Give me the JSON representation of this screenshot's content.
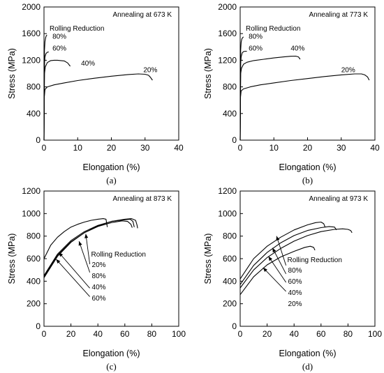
{
  "chart_data": [
    {
      "id": "a",
      "type": "line",
      "caption": "(a)",
      "annotation": "Annealing at 673 K",
      "legend_title": "Rolling Reduction",
      "xlabel": "Elongation (%)",
      "ylabel": "Stress (MPa)",
      "xlim": [
        0,
        40
      ],
      "ylim": [
        0,
        2000
      ],
      "xticks": [
        0,
        10,
        20,
        30,
        40
      ],
      "yticks": [
        0,
        400,
        800,
        1200,
        1600,
        2000
      ],
      "series": [
        {
          "name": "80%",
          "x": [
            0,
            0.15,
            0.3,
            0.5,
            0.7,
            0.9
          ],
          "y": [
            0,
            1350,
            1480,
            1540,
            1570,
            1580
          ]
        },
        {
          "name": "60%",
          "x": [
            0,
            0.15,
            0.3,
            0.6,
            1.0,
            1.4
          ],
          "y": [
            0,
            1150,
            1250,
            1300,
            1320,
            1325
          ]
        },
        {
          "name": "40%",
          "x": [
            0,
            0.15,
            0.4,
            1,
            2,
            3,
            4,
            5,
            6,
            7,
            7.8
          ],
          "y": [
            0,
            1000,
            1100,
            1165,
            1195,
            1200,
            1200,
            1195,
            1190,
            1160,
            1110
          ]
        },
        {
          "name": "20%",
          "x": [
            0,
            0.1,
            0.3,
            1,
            3,
            6,
            10,
            15,
            20,
            25,
            28,
            30,
            31,
            31.5,
            32.2
          ],
          "y": [
            0,
            650,
            760,
            800,
            830,
            860,
            895,
            930,
            960,
            985,
            995,
            990,
            975,
            950,
            900
          ]
        }
      ],
      "labels": [
        {
          "text": "80%",
          "x": 2.5,
          "y": 1525
        },
        {
          "text": "60%",
          "x": 2.5,
          "y": 1345
        },
        {
          "text": "40%",
          "x": 11,
          "y": 1120
        },
        {
          "text": "20%",
          "x": 29.5,
          "y": 1020
        }
      ]
    },
    {
      "id": "b",
      "type": "line",
      "caption": "(b)",
      "annotation": "Annealing at 773 K",
      "legend_title": "Rolling Reduction",
      "xlabel": "Elongation (%)",
      "ylabel": "Stress (MPa)",
      "xlim": [
        0,
        40
      ],
      "ylim": [
        0,
        2000
      ],
      "xticks": [
        0,
        10,
        20,
        30,
        40
      ],
      "yticks": [
        0,
        400,
        800,
        1200,
        1600,
        2000
      ],
      "series": [
        {
          "name": "80%",
          "x": [
            0,
            0.15,
            0.3,
            0.5,
            0.8,
            1.0
          ],
          "y": [
            0,
            1350,
            1470,
            1520,
            1545,
            1550
          ]
        },
        {
          "name": "60%",
          "x": [
            0,
            0.15,
            0.3,
            0.6,
            1.0,
            1.5,
            2.0
          ],
          "y": [
            0,
            1150,
            1250,
            1310,
            1330,
            1335,
            1335
          ]
        },
        {
          "name": "40%",
          "x": [
            0,
            0.15,
            0.4,
            1,
            2,
            4,
            7,
            10,
            13,
            15,
            16.5,
            17.3,
            17.8
          ],
          "y": [
            0,
            1000,
            1080,
            1140,
            1170,
            1195,
            1215,
            1235,
            1250,
            1260,
            1262,
            1250,
            1215
          ]
        },
        {
          "name": "20%",
          "x": [
            0,
            0.1,
            0.3,
            1,
            3,
            6,
            10,
            15,
            20,
            25,
            30,
            34,
            36,
            37,
            37.8,
            38.3
          ],
          "y": [
            0,
            650,
            740,
            770,
            800,
            830,
            860,
            895,
            925,
            955,
            980,
            995,
            995,
            980,
            950,
            900
          ]
        }
      ],
      "labels": [
        {
          "text": "80%",
          "x": 2.5,
          "y": 1525
        },
        {
          "text": "60%",
          "x": 2.5,
          "y": 1345
        },
        {
          "text": "40%",
          "x": 15,
          "y": 1345
        },
        {
          "text": "20%",
          "x": 30,
          "y": 1020
        }
      ]
    },
    {
      "id": "c",
      "type": "line",
      "caption": "(c)",
      "annotation": "Annealing at 873 K",
      "legend_title": "Rolling Reduction",
      "legend_entries": [
        "20%",
        "80%",
        "40%",
        "60%"
      ],
      "xlabel": "Elongation (%)",
      "ylabel": "Stress (MPa)",
      "xlim": [
        0,
        100
      ],
      "ylim": [
        0,
        1200
      ],
      "xticks": [
        0,
        20,
        40,
        60,
        80,
        100
      ],
      "yticks": [
        0,
        200,
        400,
        600,
        800,
        1000,
        1200
      ],
      "series": [
        {
          "name": "20%",
          "x": [
            0,
            10,
            20,
            30,
            40,
            50,
            60,
            65,
            68,
            69,
            69.5
          ],
          "y": [
            430,
            620,
            745,
            830,
            890,
            930,
            950,
            955,
            940,
            900,
            870
          ]
        },
        {
          "name": "80%",
          "x": [
            0,
            5,
            10,
            15,
            20,
            25,
            30,
            35,
            40,
            44,
            46,
            47
          ],
          "y": [
            600,
            720,
            790,
            840,
            880,
            905,
            925,
            940,
            950,
            955,
            950,
            880
          ]
        },
        {
          "name": "40%",
          "x": [
            0,
            10,
            20,
            30,
            40,
            50,
            60,
            64,
            66,
            67
          ],
          "y": [
            450,
            640,
            760,
            840,
            895,
            930,
            945,
            950,
            930,
            880
          ]
        },
        {
          "name": "60%",
          "x": [
            0,
            10,
            20,
            30,
            40,
            50,
            58,
            62,
            64.5,
            65.5
          ],
          "y": [
            440,
            630,
            750,
            830,
            885,
            920,
            935,
            930,
            905,
            875
          ]
        }
      ],
      "arrows": [
        {
          "from": [
            34,
            552
          ],
          "to": [
            31,
            820
          ]
        },
        {
          "from": [
            34,
            478
          ],
          "to": [
            26,
            755
          ]
        },
        {
          "from": [
            34,
            338
          ],
          "to": [
            11,
            655
          ]
        },
        {
          "from": [
            34,
            263
          ],
          "to": [
            9,
            595
          ]
        }
      ],
      "legend_pos": {
        "x": 35,
        "y": 620,
        "dy": 72
      }
    },
    {
      "id": "d",
      "type": "line",
      "caption": "(d)",
      "annotation": "Annealing at 973 K",
      "legend_title": "Rolling Reduction",
      "legend_entries": [
        "80%",
        "60%",
        "40%",
        "20%"
      ],
      "xlabel": "Elongation (%)",
      "ylabel": "Stress (MPa)",
      "xlim": [
        0,
        100
      ],
      "ylim": [
        0,
        1200
      ],
      "xticks": [
        0,
        20,
        40,
        60,
        80,
        100
      ],
      "yticks": [
        0,
        200,
        400,
        600,
        800,
        1000,
        1200
      ],
      "series": [
        {
          "name": "80%",
          "x": [
            0,
            10,
            20,
            30,
            40,
            50,
            56,
            60,
            62,
            63
          ],
          "y": [
            420,
            600,
            710,
            790,
            855,
            900,
            920,
            925,
            910,
            880
          ]
        },
        {
          "name": "60%",
          "x": [
            0,
            10,
            20,
            30,
            40,
            50,
            60,
            66,
            70,
            71.5
          ],
          "y": [
            370,
            540,
            655,
            740,
            805,
            850,
            875,
            885,
            880,
            855
          ]
        },
        {
          "name": "40%",
          "x": [
            0,
            10,
            20,
            30,
            40,
            50,
            60,
            70,
            76,
            80,
            82,
            83
          ],
          "y": [
            340,
            500,
            610,
            690,
            755,
            805,
            840,
            860,
            865,
            860,
            850,
            830
          ]
        },
        {
          "name": "20%",
          "x": [
            0,
            10,
            20,
            30,
            40,
            48,
            52,
            54.5,
            55.5
          ],
          "y": [
            280,
            440,
            545,
            615,
            665,
            700,
            710,
            700,
            675
          ]
        }
      ],
      "arrows": [
        {
          "from": [
            34,
            540
          ],
          "to": [
            27,
            800
          ]
        },
        {
          "from": [
            34,
            465
          ],
          "to": [
            24,
            695
          ]
        },
        {
          "from": [
            34,
            390
          ],
          "to": [
            21,
            620
          ]
        },
        {
          "from": [
            34,
            310
          ],
          "to": [
            17,
            520
          ]
        }
      ],
      "legend_pos": {
        "x": 35,
        "y": 570,
        "dy": 75
      }
    }
  ]
}
